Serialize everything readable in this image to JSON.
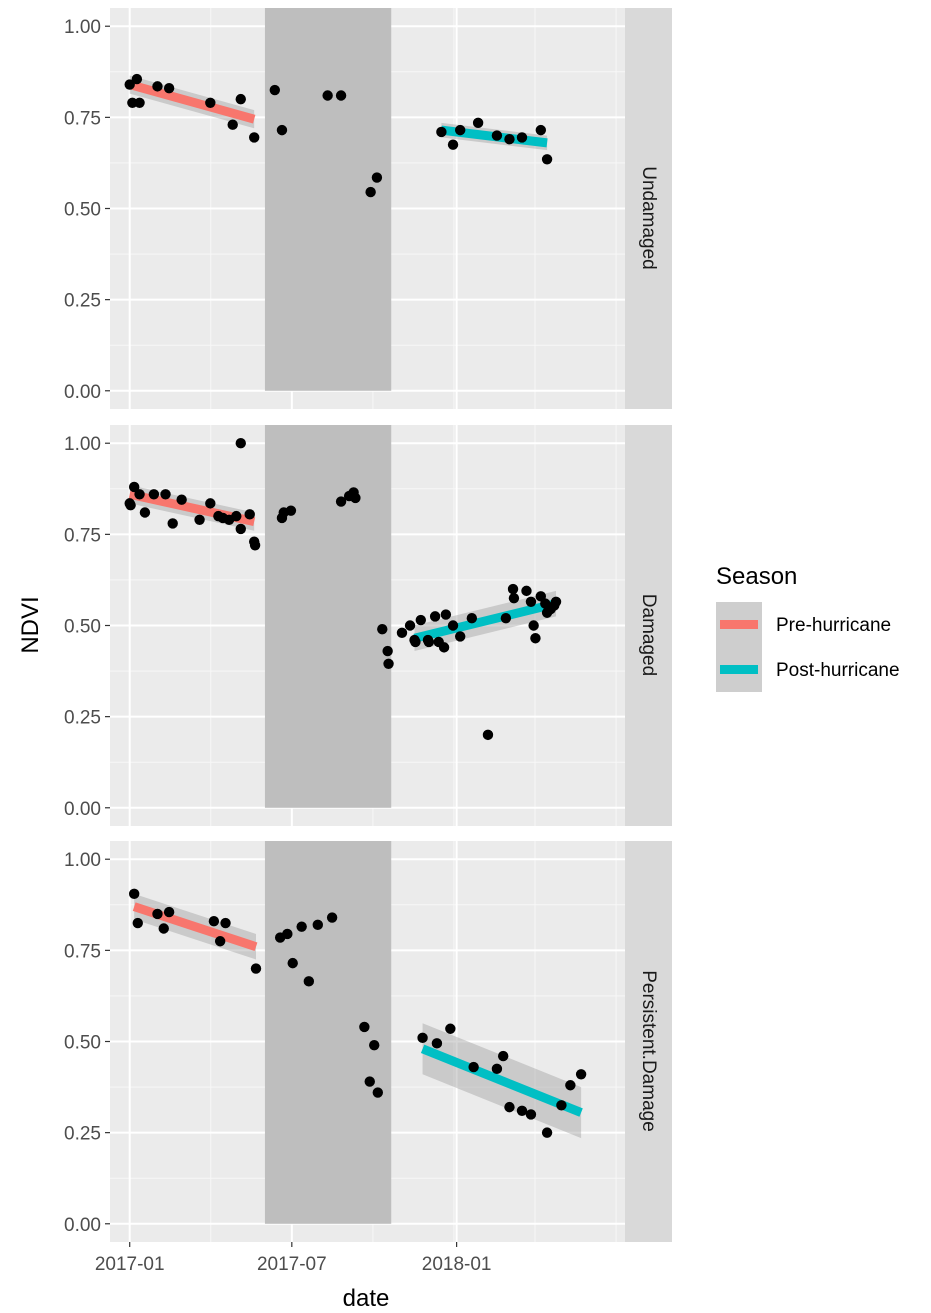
{
  "chart_data": {
    "type": "scatter",
    "xlabel": "date",
    "ylabel": "NDVI",
    "x_ticks": [
      "2017-01",
      "2017-07",
      "2018-01"
    ],
    "x_tick_dates": [
      "2017-01-01",
      "2017-07-01",
      "2018-01-01"
    ],
    "xlim": [
      "2016-12-10",
      "2018-07-08"
    ],
    "ylim": [
      -0.05,
      1.05
    ],
    "y_ticks": [
      "0.00",
      "0.25",
      "0.50",
      "0.75",
      "1.00"
    ],
    "y_tick_values": [
      0,
      0.25,
      0.5,
      0.75,
      1.0
    ],
    "grid": true,
    "hurricane_shading": {
      "start": "2017-06-01",
      "end": "2017-10-20",
      "color": "#bebebe"
    },
    "legend": {
      "title": "Season",
      "placement": "right",
      "entries": [
        {
          "label": "Pre-hurricane",
          "color": "#F8766D"
        },
        {
          "label": "Post-hurricane",
          "color": "#00BFC4"
        }
      ]
    },
    "point_color": "#000000",
    "panels": [
      {
        "label": "Undamaged",
        "points": [
          [
            "2017-01-01",
            0.84
          ],
          [
            "2017-01-04",
            0.79
          ],
          [
            "2017-01-09",
            0.855
          ],
          [
            "2017-01-12",
            0.79
          ],
          [
            "2017-02-01",
            0.835
          ],
          [
            "2017-02-14",
            0.83
          ],
          [
            "2017-04-01",
            0.79
          ],
          [
            "2017-04-26",
            0.73
          ],
          [
            "2017-05-05",
            0.8
          ],
          [
            "2017-05-20",
            0.695
          ],
          [
            "2017-06-12",
            0.825
          ],
          [
            "2017-06-20",
            0.715
          ],
          [
            "2017-08-10",
            0.81
          ],
          [
            "2017-08-25",
            0.81
          ],
          [
            "2017-09-27",
            0.545
          ],
          [
            "2017-10-04",
            0.585
          ],
          [
            "2017-12-15",
            0.71
          ],
          [
            "2017-12-28",
            0.675
          ],
          [
            "2018-01-05",
            0.715
          ],
          [
            "2018-01-25",
            0.735
          ],
          [
            "2018-02-15",
            0.7
          ],
          [
            "2018-03-01",
            0.69
          ],
          [
            "2018-03-15",
            0.695
          ],
          [
            "2018-04-05",
            0.715
          ],
          [
            "2018-04-12",
            0.635
          ]
        ],
        "trends": [
          {
            "season": "Pre-hurricane",
            "x": [
              "2017-01-01",
              "2017-05-20"
            ],
            "y": [
              0.84,
              0.745
            ],
            "ci": 0.025
          },
          {
            "season": "Post-hurricane",
            "x": [
              "2017-12-15",
              "2018-04-12"
            ],
            "y": [
              0.715,
              0.68
            ],
            "ci": 0.02
          }
        ]
      },
      {
        "label": "Damaged",
        "points": [
          [
            "2017-01-01",
            0.835
          ],
          [
            "2017-01-02",
            0.83
          ],
          [
            "2017-01-06",
            0.88
          ],
          [
            "2017-01-12",
            0.86
          ],
          [
            "2017-01-18",
            0.81
          ],
          [
            "2017-01-28",
            0.86
          ],
          [
            "2017-02-10",
            0.86
          ],
          [
            "2017-02-18",
            0.78
          ],
          [
            "2017-02-28",
            0.845
          ],
          [
            "2017-03-20",
            0.79
          ],
          [
            "2017-04-01",
            0.835
          ],
          [
            "2017-04-10",
            0.8
          ],
          [
            "2017-04-15",
            0.795
          ],
          [
            "2017-04-22",
            0.79
          ],
          [
            "2017-04-30",
            0.8
          ],
          [
            "2017-05-05",
            0.765
          ],
          [
            "2017-05-05",
            1.0
          ],
          [
            "2017-05-15",
            0.805
          ],
          [
            "2017-05-20",
            0.73
          ],
          [
            "2017-05-21",
            0.72
          ],
          [
            "2017-06-20",
            0.795
          ],
          [
            "2017-06-22",
            0.81
          ],
          [
            "2017-06-30",
            0.815
          ],
          [
            "2017-08-25",
            0.84
          ],
          [
            "2017-09-03",
            0.855
          ],
          [
            "2017-09-08",
            0.865
          ],
          [
            "2017-09-10",
            0.85
          ],
          [
            "2017-10-10",
            0.49
          ],
          [
            "2017-10-16",
            0.43
          ],
          [
            "2017-10-17",
            0.395
          ],
          [
            "2017-11-01",
            0.48
          ],
          [
            "2017-11-10",
            0.5
          ],
          [
            "2017-11-15",
            0.46
          ],
          [
            "2017-11-16",
            0.455
          ],
          [
            "2017-11-22",
            0.515
          ],
          [
            "2017-11-30",
            0.46
          ],
          [
            "2017-12-01",
            0.455
          ],
          [
            "2017-12-08",
            0.525
          ],
          [
            "2017-12-12",
            0.455
          ],
          [
            "2017-12-18",
            0.44
          ],
          [
            "2017-12-20",
            0.53
          ],
          [
            "2017-12-28",
            0.5
          ],
          [
            "2018-01-05",
            0.47
          ],
          [
            "2018-01-18",
            0.52
          ],
          [
            "2018-02-05",
            0.2
          ],
          [
            "2018-02-25",
            0.52
          ],
          [
            "2018-03-05",
            0.6
          ],
          [
            "2018-03-06",
            0.575
          ],
          [
            "2018-03-20",
            0.595
          ],
          [
            "2018-03-25",
            0.565
          ],
          [
            "2018-03-28",
            0.5
          ],
          [
            "2018-03-30",
            0.465
          ],
          [
            "2018-04-05",
            0.58
          ],
          [
            "2018-04-10",
            0.56
          ],
          [
            "2018-04-12",
            0.535
          ],
          [
            "2018-04-16",
            0.545
          ],
          [
            "2018-04-20",
            0.555
          ],
          [
            "2018-04-22",
            0.565
          ]
        ],
        "trends": [
          {
            "season": "Pre-hurricane",
            "x": [
              "2017-01-01",
              "2017-05-20"
            ],
            "y": [
              0.86,
              0.785
            ],
            "ci": 0.025
          },
          {
            "season": "Post-hurricane",
            "x": [
              "2017-11-15",
              "2018-04-22"
            ],
            "y": [
              0.465,
              0.56
            ],
            "ci": 0.035
          }
        ]
      },
      {
        "label": "Persistent.Damage",
        "points": [
          [
            "2017-01-06",
            0.905
          ],
          [
            "2017-01-10",
            0.825
          ],
          [
            "2017-02-01",
            0.85
          ],
          [
            "2017-02-08",
            0.81
          ],
          [
            "2017-02-14",
            0.855
          ],
          [
            "2017-04-05",
            0.83
          ],
          [
            "2017-04-12",
            0.775
          ],
          [
            "2017-04-18",
            0.825
          ],
          [
            "2017-05-22",
            0.7
          ],
          [
            "2017-06-18",
            0.785
          ],
          [
            "2017-06-26",
            0.795
          ],
          [
            "2017-07-02",
            0.715
          ],
          [
            "2017-07-12",
            0.815
          ],
          [
            "2017-07-20",
            0.665
          ],
          [
            "2017-07-30",
            0.82
          ],
          [
            "2017-08-15",
            0.84
          ],
          [
            "2017-09-20",
            0.54
          ],
          [
            "2017-09-26",
            0.39
          ],
          [
            "2017-10-01",
            0.49
          ],
          [
            "2017-10-05",
            0.36
          ],
          [
            "2017-11-24",
            0.51
          ],
          [
            "2017-12-10",
            0.495
          ],
          [
            "2017-12-25",
            0.535
          ],
          [
            "2018-01-20",
            0.43
          ],
          [
            "2018-02-15",
            0.425
          ],
          [
            "2018-02-22",
            0.46
          ],
          [
            "2018-03-01",
            0.32
          ],
          [
            "2018-03-15",
            0.31
          ],
          [
            "2018-03-25",
            0.3
          ],
          [
            "2018-04-12",
            0.25
          ],
          [
            "2018-04-28",
            0.325
          ],
          [
            "2018-05-08",
            0.38
          ],
          [
            "2018-05-20",
            0.41
          ]
        ],
        "trends": [
          {
            "season": "Pre-hurricane",
            "x": [
              "2017-01-06",
              "2017-05-22"
            ],
            "y": [
              0.87,
              0.76
            ],
            "ci": 0.035
          },
          {
            "season": "Post-hurricane",
            "x": [
              "2017-11-24",
              "2018-05-20"
            ],
            "y": [
              0.48,
              0.305
            ],
            "ci": 0.07
          }
        ]
      }
    ]
  }
}
